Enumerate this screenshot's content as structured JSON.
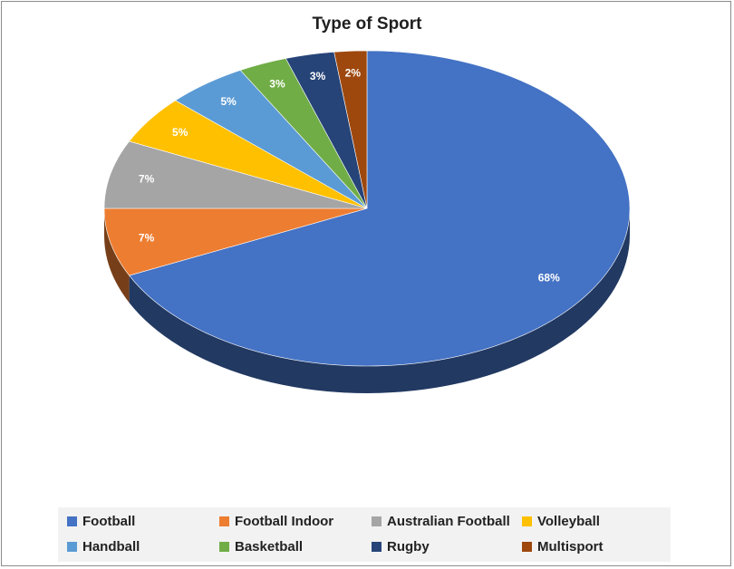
{
  "chart_data": {
    "type": "pie",
    "title": "Type of Sport",
    "categories": [
      "Football",
      "Football Indoor",
      "Australian Football",
      "Volleyball",
      "Handball",
      "Basketball",
      "Rugby",
      "Multisport"
    ],
    "values": [
      68,
      7,
      7,
      5,
      5,
      3,
      3,
      2
    ],
    "labels": [
      "68%",
      "7%",
      "7%",
      "5%",
      "5%",
      "3%",
      "3%",
      "2%"
    ],
    "colors": [
      "#4472c4",
      "#ed7d31",
      "#a5a5a5",
      "#ffc000",
      "#5b9bd5",
      "#70ad47",
      "#264478",
      "#9e480e"
    ],
    "style": "3d-pie",
    "legend_position": "bottom"
  }
}
